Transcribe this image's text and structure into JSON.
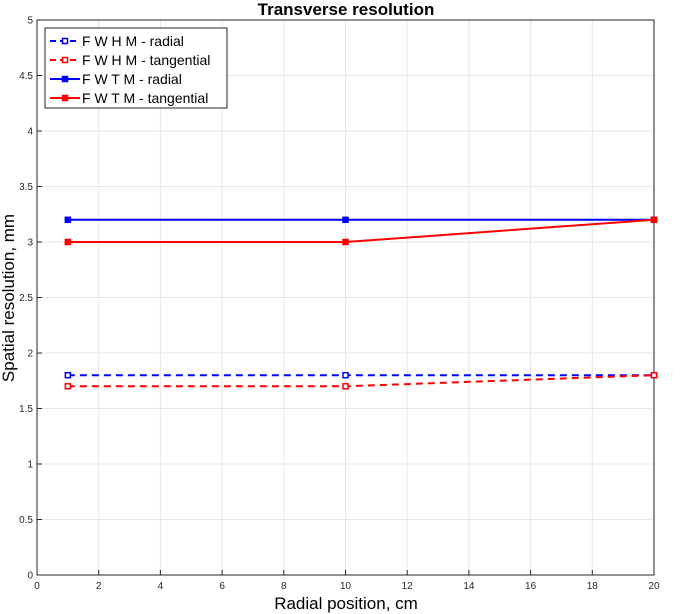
{
  "chart_data": {
    "type": "line",
    "title": "Transverse resolution",
    "xlabel": "Radial position, cm",
    "ylabel": "Spatial resolution, mm",
    "xlim": [
      0,
      20
    ],
    "ylim": [
      0,
      5
    ],
    "xticks": [
      "0",
      "2",
      "4",
      "6",
      "8",
      "10",
      "12",
      "14",
      "16",
      "18",
      "20"
    ],
    "yticks": [
      "0",
      "0.5",
      "1",
      "1.5",
      "2",
      "2.5",
      "3",
      "3.5",
      "4",
      "4.5",
      "5"
    ],
    "grid": true,
    "legend_position": "top-left",
    "x": [
      1,
      10,
      20
    ],
    "series": [
      {
        "name": "F W H M - radial",
        "values": [
          1.8,
          1.8,
          1.8
        ],
        "color": "#0000ff",
        "dash": true
      },
      {
        "name": "F W H M - tangential",
        "values": [
          1.7,
          1.7,
          1.8
        ],
        "color": "#ff0000",
        "dash": true
      },
      {
        "name": "F W T M - radial",
        "values": [
          3.2,
          3.2,
          3.2
        ],
        "color": "#0000ff",
        "dash": false
      },
      {
        "name": "F W T M - tangential",
        "values": [
          3.0,
          3.0,
          3.2
        ],
        "color": "#ff0000",
        "dash": false
      }
    ]
  }
}
